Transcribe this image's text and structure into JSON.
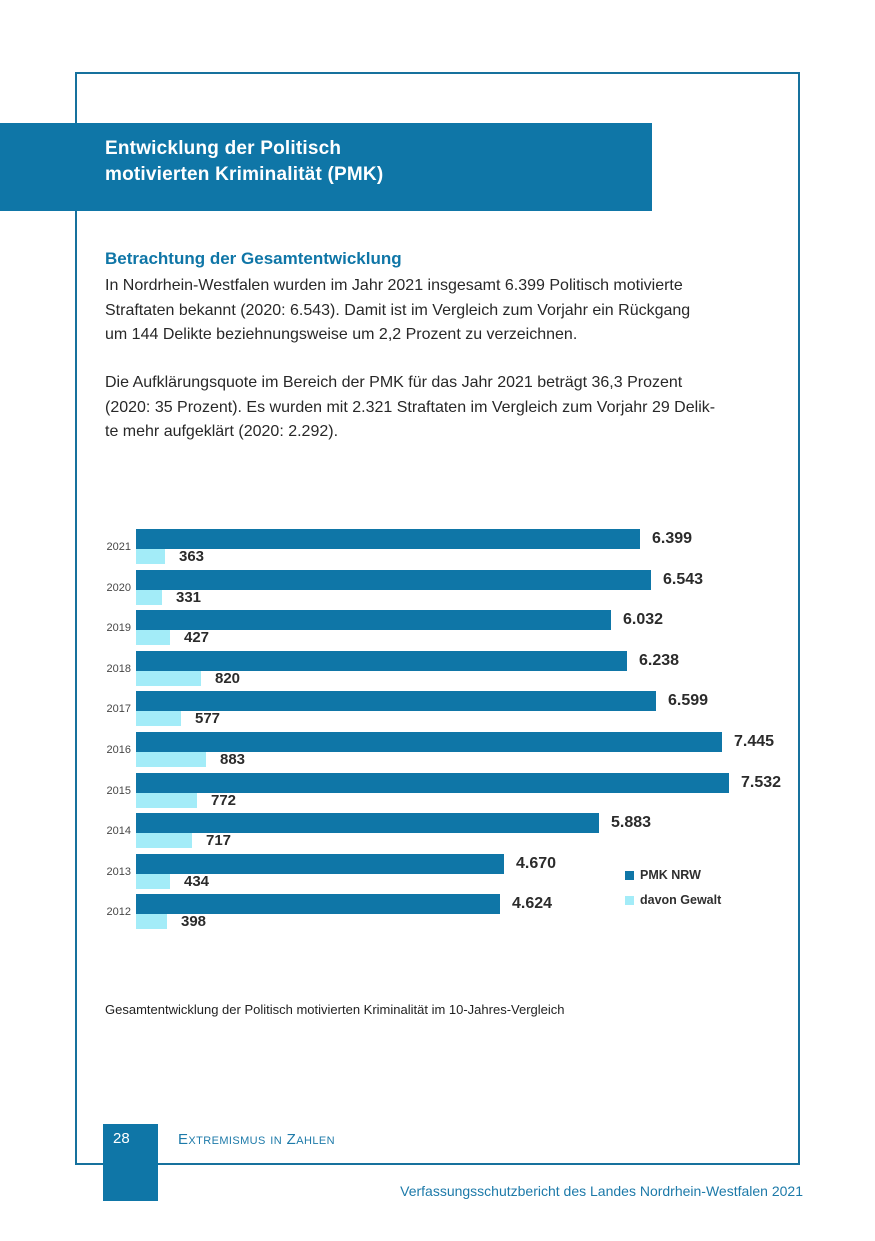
{
  "page": {
    "banner_title": "Entwicklung der Politisch\nmotivierten Kriminalität (PMK)"
  },
  "content": {
    "heading": "Betrachtung der Gesamtentwicklung",
    "paragraph1": [
      "In Nordrhein-Westfalen wurden im Jahr 2021 insgesamt 6.399 Politisch motivierte",
      "Straftaten bekannt (2020: 6.543). Damit ist im Vergleich zum Vorjahr ein Rückgang",
      "um 144 Delikte beziehnungsweise um 2,2 Prozent zu verzeichnen."
    ],
    "paragraph2": [
      "Die Aufklärungsquote im Bereich der PMK für das Jahr 2021 beträgt 36,3 Prozent",
      "(2020: 35 Prozent). Es wurden mit 2.321 Straftaten im Vergleich zum Vorjahr 29 Delik-",
      "te mehr aufgeklärt (2020: 2.292)."
    ],
    "caption": "Gesamtentwicklung der Politisch motivierten Kriminalität im 10-Jahres-Vergleich"
  },
  "chart_data": {
    "type": "bar",
    "orientation": "horizontal",
    "title": "",
    "xlabel": "",
    "ylabel": "",
    "axis_visible": false,
    "grid": false,
    "legend_position": "right-bottom",
    "categories": [
      "2021",
      "2020",
      "2019",
      "2018",
      "2017",
      "2016",
      "2015",
      "2014",
      "2013",
      "2012"
    ],
    "series": [
      {
        "name": "PMK NRW",
        "color": "#0f76a7",
        "values": [
          6399,
          6543,
          6032,
          6238,
          6599,
          7445,
          7532,
          5883,
          4670,
          4624
        ],
        "labels": [
          "6.399",
          "6.543",
          "6.032",
          "6.238",
          "6.599",
          "7.445",
          "7.532",
          "5.883",
          "4.670",
          "4.624"
        ]
      },
      {
        "name": "davon Gewalt",
        "color": "#a3ecf8",
        "values": [
          363,
          331,
          427,
          820,
          577,
          883,
          772,
          717,
          434,
          398
        ],
        "labels": [
          "363",
          "331",
          "427",
          "820",
          "577",
          "883",
          "772",
          "717",
          "434",
          "398"
        ]
      }
    ]
  },
  "footer": {
    "page_number": "28",
    "section": "Extremismus in Zahlen",
    "report_title": "Verfassungsschutzbericht des Landes Nordrhein-Westfalen 2021"
  },
  "colors": {
    "brand_blue": "#0f76a7",
    "light_cyan": "#a3ecf8",
    "border_blue": "#16719d",
    "text_dark": "#282828",
    "footer_blue": "#1d7aa9"
  }
}
